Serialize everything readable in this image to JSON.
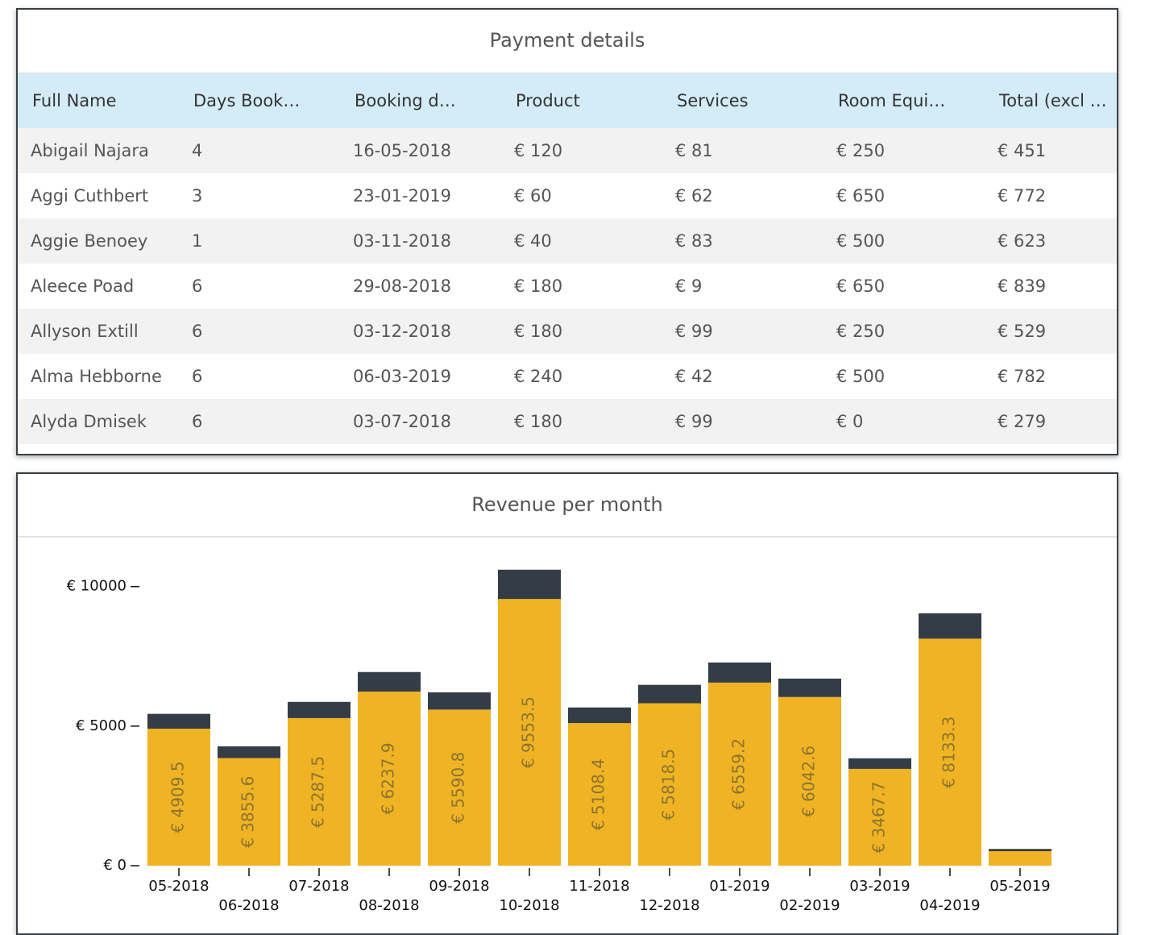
{
  "table": {
    "title": "Payment details",
    "columns": [
      "Full Name",
      "Days Book…",
      "Booking d…",
      "Product",
      "Services",
      "Room Equi…",
      "Total (excl …"
    ],
    "rows": [
      [
        "Abigail Najara",
        "4",
        "16-05-2018",
        "€ 120",
        "€ 81",
        "€ 250",
        "€ 451"
      ],
      [
        "Aggi Cuthbert",
        "3",
        "23-01-2019",
        "€ 60",
        "€ 62",
        "€ 650",
        "€ 772"
      ],
      [
        "Aggie Benoey",
        "1",
        "03-11-2018",
        "€ 40",
        "€ 83",
        "€ 500",
        "€ 623"
      ],
      [
        "Aleece Poad",
        "6",
        "29-08-2018",
        "€ 180",
        "€ 9",
        "€ 650",
        "€ 839"
      ],
      [
        "Allyson Extill",
        "6",
        "03-12-2018",
        "€ 180",
        "€ 99",
        "€ 250",
        "€ 529"
      ],
      [
        "Alma Hebborne",
        "6",
        "06-03-2019",
        "€ 240",
        "€ 42",
        "€ 500",
        "€ 782"
      ],
      [
        "Alyda Dmisek",
        "6",
        "03-07-2018",
        "€ 180",
        "€ 99",
        "€ 0",
        "€ 279"
      ]
    ]
  },
  "chart_data": {
    "type": "bar",
    "stacked": true,
    "title": "Revenue per month",
    "categories": [
      "05-2018",
      "06-2018",
      "07-2018",
      "08-2018",
      "09-2018",
      "10-2018",
      "11-2018",
      "12-2018",
      "01-2019",
      "02-2019",
      "03-2019",
      "04-2019",
      "05-2019"
    ],
    "series": [
      {
        "color": "#f0b323",
        "label_color": "#8a7530",
        "values": [
          4909.5,
          3855.6,
          5287.5,
          6237.9,
          5590.8,
          9553.5,
          5108.4,
          5818.5,
          6559.2,
          6042.6,
          3467.7,
          8133.3,
          520
        ],
        "value_labels": [
          "€ 4909.5",
          "€ 3855.6",
          "€ 5287.5",
          "€ 6237.9",
          "€ 5590.8",
          "€ 9553.5",
          "€ 5108.4",
          "€ 5818.5",
          "€ 6559.2",
          "€ 6042.6",
          "€ 3467.7",
          "€ 8133.3",
          null
        ]
      },
      {
        "color": "#343d46",
        "values": [
          530,
          420,
          580,
          700,
          620,
          1050,
          560,
          660,
          720,
          660,
          380,
          910,
          80
        ]
      }
    ],
    "ylim": [
      0,
      10800
    ],
    "yticks": [
      {
        "value": 0,
        "label": "€ 0"
      },
      {
        "value": 5000,
        "label": "€ 5000"
      },
      {
        "value": 10000,
        "label": "€ 10000"
      }
    ]
  }
}
